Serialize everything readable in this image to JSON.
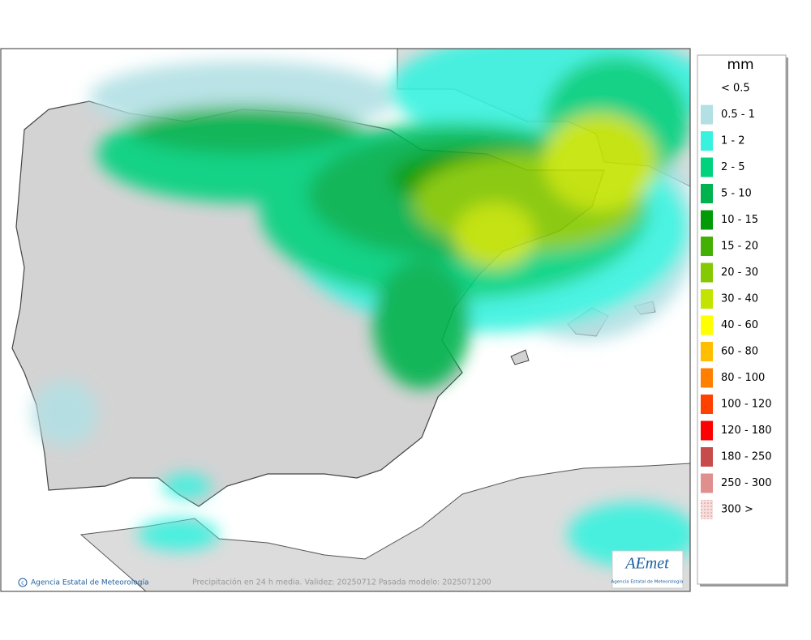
{
  "legend": {
    "title": "mm",
    "items": [
      {
        "label": "< 0.5",
        "color": "#ffffff"
      },
      {
        "label": "0.5 - 1",
        "color": "#b2e0e4"
      },
      {
        "label": "1 - 2",
        "color": "#38f2df"
      },
      {
        "label": "2 - 5",
        "color": "#00d27e"
      },
      {
        "label": "5 - 10",
        "color": "#00b34e"
      },
      {
        "label": "10 - 15",
        "color": "#009b06"
      },
      {
        "label": "15 - 20",
        "color": "#45b004"
      },
      {
        "label": "20 - 30",
        "color": "#84c902"
      },
      {
        "label": "30 - 40",
        "color": "#c3e400"
      },
      {
        "label": "40 - 60",
        "color": "#ffff00"
      },
      {
        "label": "60 - 80",
        "color": "#ffbf00"
      },
      {
        "label": "80 - 100",
        "color": "#ff7f00"
      },
      {
        "label": "100 - 120",
        "color": "#ff4000"
      },
      {
        "label": "120 - 180",
        "color": "#ff0000"
      },
      {
        "label": "180 - 250",
        "color": "#c84b4b"
      },
      {
        "label": "250 - 300",
        "color": "#e08f8f"
      },
      {
        "label": "300 >",
        "color": "#f3c4c4"
      }
    ]
  },
  "footer": {
    "credit": "Agencia Estatal de Meteorología",
    "caption": "Precipitación en 24 h media. Validez: 20250712 Pasada modelo: 2025071200"
  },
  "logo": {
    "name": "AEmet",
    "subtitle": "Agencia Estatal de Meteorología"
  }
}
